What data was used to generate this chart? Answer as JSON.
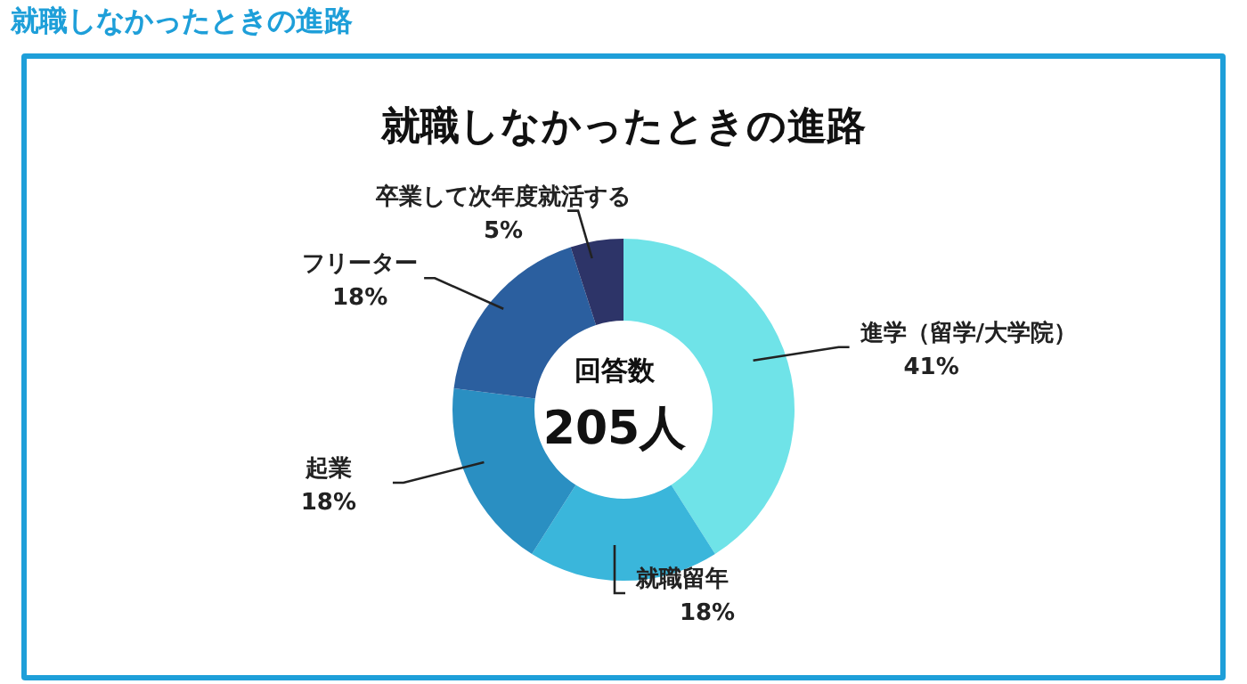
{
  "chart_data": {
    "type": "donut",
    "title": "就職しなかったときの進路",
    "subtitle": "就職しなかったときの進路",
    "categories": [
      "進学（留学/大学院）",
      "就職留年",
      "起業",
      "フリーター",
      "卒業して次年度就活する"
    ],
    "values": [
      41,
      18,
      18,
      18,
      5
    ],
    "value_labels": [
      "41%",
      "18%",
      "18%",
      "18%",
      "5%"
    ],
    "colors": [
      "#6fe3e8",
      "#3ab6db",
      "#2a8fc2",
      "#2b5f9f",
      "#2d3468"
    ],
    "annotations": [
      "回答数",
      "205人"
    ]
  }
}
